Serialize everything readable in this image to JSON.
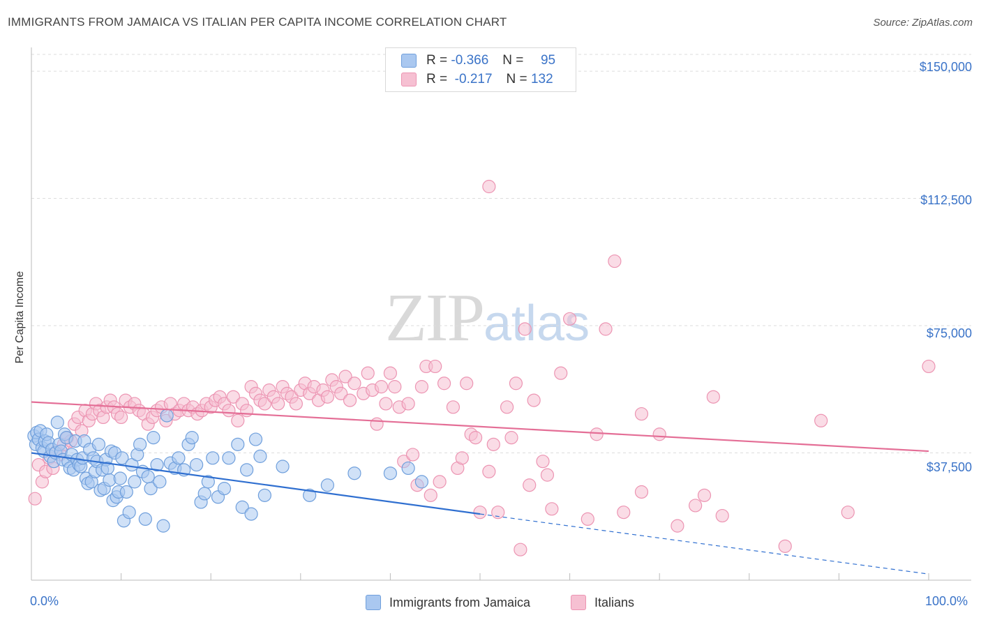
{
  "header": {
    "title": "IMMIGRANTS FROM JAMAICA VS ITALIAN PER CAPITA INCOME CORRELATION CHART",
    "source": "Source: ZipAtlas.com"
  },
  "watermark": {
    "zip": "ZIP",
    "atlas": "atlas"
  },
  "legend": {
    "jamaica": {
      "r_label": "R =",
      "r_value": "-0.366",
      "n_label": "N =",
      "n_value": "95"
    },
    "italians": {
      "r_label": "R =",
      "r_value": "-0.217",
      "n_label": "N =",
      "n_value": "132"
    }
  },
  "colors": {
    "jamaica_fill": "#aac8f0",
    "jamaica_stroke": "#6f9fdc",
    "jamaica_line": "#2f6fd0",
    "italians_fill": "#f6c0d2",
    "italians_stroke": "#ec94b2",
    "italians_line": "#e46e96",
    "axis_text": "#3a73c8",
    "grid": "#dddddd"
  },
  "chart_data": {
    "type": "scatter",
    "title": "IMMIGRANTS FROM JAMAICA VS ITALIAN PER CAPITA INCOME CORRELATION CHART",
    "xlabel": "",
    "ylabel": "Per Capita Income",
    "xlim": [
      0,
      100
    ],
    "ylim": [
      0,
      157000
    ],
    "x_tick_labels": [
      "0.0%",
      "100.0%"
    ],
    "y_ticks": [
      37500,
      75000,
      112500,
      150000
    ],
    "y_tick_labels": [
      "$37,500",
      "$75,000",
      "$112,500",
      "$150,000"
    ],
    "legend_entries": [
      "Immigrants from Jamaica",
      "Italians"
    ],
    "series": [
      {
        "name": "Immigrants from Jamaica",
        "trend": {
          "x0": 0,
          "y0": 37500,
          "x1": 50,
          "y1": 19500,
          "dashed_to_x": 100,
          "dashed_to_y": 1800
        },
        "points": [
          [
            0.3,
            42500
          ],
          [
            0.5,
            40000
          ],
          [
            0.6,
            43500
          ],
          [
            0.8,
            41500
          ],
          [
            1,
            44000
          ],
          [
            1.2,
            39000
          ],
          [
            1.4,
            38000
          ],
          [
            1.5,
            41000
          ],
          [
            1.7,
            43000
          ],
          [
            1.9,
            40500
          ],
          [
            2.1,
            36500
          ],
          [
            2.3,
            38500
          ],
          [
            2.5,
            35000
          ],
          [
            2.7,
            37500
          ],
          [
            2.9,
            46500
          ],
          [
            3.1,
            40000
          ],
          [
            3.3,
            38000
          ],
          [
            3.5,
            35500
          ],
          [
            3.7,
            43000
          ],
          [
            3.9,
            42000
          ],
          [
            4.1,
            35000
          ],
          [
            4.3,
            33000
          ],
          [
            4.5,
            37000
          ],
          [
            4.7,
            32500
          ],
          [
            4.9,
            41000
          ],
          [
            5.1,
            35500
          ],
          [
            5.3,
            34000
          ],
          [
            5.5,
            33500
          ],
          [
            5.7,
            36000
          ],
          [
            5.9,
            41000
          ],
          [
            6.1,
            30000
          ],
          [
            6.3,
            28500
          ],
          [
            6.5,
            38500
          ],
          [
            6.7,
            29000
          ],
          [
            6.9,
            36000
          ],
          [
            7.1,
            32000
          ],
          [
            7.3,
            35000
          ],
          [
            7.5,
            40000
          ],
          [
            7.7,
            26500
          ],
          [
            7.9,
            32500
          ],
          [
            8.1,
            27000
          ],
          [
            8.3,
            35500
          ],
          [
            8.5,
            33000
          ],
          [
            8.7,
            29500
          ],
          [
            8.9,
            38000
          ],
          [
            9.1,
            23500
          ],
          [
            9.3,
            37500
          ],
          [
            9.5,
            24500
          ],
          [
            9.7,
            26000
          ],
          [
            9.9,
            30000
          ],
          [
            10.1,
            36000
          ],
          [
            10.3,
            17500
          ],
          [
            10.6,
            26000
          ],
          [
            10.9,
            20000
          ],
          [
            11.2,
            34000
          ],
          [
            11.5,
            29000
          ],
          [
            11.8,
            37000
          ],
          [
            12.1,
            40000
          ],
          [
            12.4,
            32000
          ],
          [
            12.7,
            18000
          ],
          [
            13,
            30500
          ],
          [
            13.3,
            27000
          ],
          [
            13.6,
            42000
          ],
          [
            14,
            34000
          ],
          [
            14.3,
            29000
          ],
          [
            14.7,
            16000
          ],
          [
            15.1,
            48500
          ],
          [
            15.5,
            34500
          ],
          [
            16,
            33000
          ],
          [
            16.4,
            36000
          ],
          [
            17,
            32500
          ],
          [
            17.5,
            40000
          ],
          [
            17.9,
            42000
          ],
          [
            18.4,
            34000
          ],
          [
            18.9,
            23000
          ],
          [
            19.3,
            25500
          ],
          [
            19.7,
            29000
          ],
          [
            20.2,
            36000
          ],
          [
            20.8,
            24500
          ],
          [
            21.5,
            27000
          ],
          [
            22,
            36000
          ],
          [
            23,
            40000
          ],
          [
            23.5,
            21500
          ],
          [
            24,
            32500
          ],
          [
            24.5,
            19500
          ],
          [
            25,
            41500
          ],
          [
            25.5,
            36500
          ],
          [
            26,
            25000
          ],
          [
            28,
            33500
          ],
          [
            31,
            25000
          ],
          [
            33,
            28000
          ],
          [
            36,
            31500
          ],
          [
            40,
            31500
          ],
          [
            42,
            33000
          ],
          [
            43.5,
            29000
          ]
        ]
      },
      {
        "name": "Italians",
        "trend": {
          "x0": 0,
          "y0": 52500,
          "x1": 100,
          "y1": 38000
        },
        "points": [
          [
            0.4,
            24000
          ],
          [
            0.8,
            34000
          ],
          [
            1.2,
            29000
          ],
          [
            1.6,
            32000
          ],
          [
            2,
            36000
          ],
          [
            2.4,
            33000
          ],
          [
            2.8,
            38000
          ],
          [
            3.2,
            37000
          ],
          [
            3.6,
            40000
          ],
          [
            4,
            42000
          ],
          [
            4.4,
            41000
          ],
          [
            4.8,
            46000
          ],
          [
            5.2,
            48000
          ],
          [
            5.6,
            44000
          ],
          [
            6,
            50000
          ],
          [
            6.4,
            47000
          ],
          [
            6.8,
            49000
          ],
          [
            7.2,
            52000
          ],
          [
            7.6,
            50000
          ],
          [
            8,
            48000
          ],
          [
            8.4,
            51000
          ],
          [
            8.8,
            53000
          ],
          [
            9.2,
            51000
          ],
          [
            9.6,
            49000
          ],
          [
            10,
            48000
          ],
          [
            10.5,
            53000
          ],
          [
            11,
            51000
          ],
          [
            11.5,
            52000
          ],
          [
            12,
            50000
          ],
          [
            12.5,
            49000
          ],
          [
            13,
            46000
          ],
          [
            13.5,
            48000
          ],
          [
            14,
            50000
          ],
          [
            14.5,
            51000
          ],
          [
            15,
            47000
          ],
          [
            15.5,
            52000
          ],
          [
            16,
            49000
          ],
          [
            16.5,
            50000
          ],
          [
            17,
            52000
          ],
          [
            17.5,
            50000
          ],
          [
            18,
            51000
          ],
          [
            18.5,
            49000
          ],
          [
            19,
            50000
          ],
          [
            19.5,
            52000
          ],
          [
            20,
            51000
          ],
          [
            20.5,
            53000
          ],
          [
            21,
            54000
          ],
          [
            21.5,
            52000
          ],
          [
            22,
            50000
          ],
          [
            22.5,
            54000
          ],
          [
            23,
            47000
          ],
          [
            23.5,
            52000
          ],
          [
            24,
            50000
          ],
          [
            24.5,
            57000
          ],
          [
            25,
            55000
          ],
          [
            25.5,
            53000
          ],
          [
            26,
            52000
          ],
          [
            26.5,
            56000
          ],
          [
            27,
            54000
          ],
          [
            27.5,
            52000
          ],
          [
            28,
            57000
          ],
          [
            28.5,
            55000
          ],
          [
            29,
            54000
          ],
          [
            29.5,
            52000
          ],
          [
            30,
            56000
          ],
          [
            30.5,
            58000
          ],
          [
            31,
            55000
          ],
          [
            31.5,
            57000
          ],
          [
            32,
            53000
          ],
          [
            32.5,
            56000
          ],
          [
            33,
            54000
          ],
          [
            33.5,
            59000
          ],
          [
            34,
            57000
          ],
          [
            34.5,
            55000
          ],
          [
            35,
            60000
          ],
          [
            35.5,
            53000
          ],
          [
            36,
            58000
          ],
          [
            37,
            55000
          ],
          [
            37.5,
            61000
          ],
          [
            38,
            56000
          ],
          [
            38.5,
            46000
          ],
          [
            39,
            57000
          ],
          [
            39.5,
            52000
          ],
          [
            40,
            61000
          ],
          [
            40.5,
            57000
          ],
          [
            41,
            51000
          ],
          [
            41.5,
            35000
          ],
          [
            42,
            52000
          ],
          [
            42.5,
            37000
          ],
          [
            43,
            28000
          ],
          [
            43.5,
            57000
          ],
          [
            44,
            63000
          ],
          [
            44.5,
            25000
          ],
          [
            45,
            63000
          ],
          [
            45.5,
            29000
          ],
          [
            46,
            58000
          ],
          [
            47,
            51000
          ],
          [
            47.5,
            33000
          ],
          [
            48,
            36000
          ],
          [
            48.5,
            58000
          ],
          [
            49,
            43000
          ],
          [
            49.5,
            42000
          ],
          [
            50,
            20000
          ],
          [
            51,
            32000
          ],
          [
            51.5,
            40000
          ],
          [
            52,
            20000
          ],
          [
            53,
            51000
          ],
          [
            53.5,
            42000
          ],
          [
            54,
            58000
          ],
          [
            54.5,
            9000
          ],
          [
            55,
            74000
          ],
          [
            55.5,
            28000
          ],
          [
            56,
            53000
          ],
          [
            57,
            35000
          ],
          [
            57.5,
            31000
          ],
          [
            58,
            21000
          ],
          [
            59,
            61000
          ],
          [
            60,
            77000
          ],
          [
            62,
            18000
          ],
          [
            63,
            43000
          ],
          [
            64,
            74000
          ],
          [
            65,
            94000
          ],
          [
            66,
            20000
          ],
          [
            68,
            26000
          ],
          [
            70,
            43000
          ],
          [
            72,
            16000
          ],
          [
            74,
            22000
          ],
          [
            75,
            25000
          ],
          [
            77,
            19000
          ],
          [
            84,
            10000
          ],
          [
            88,
            47000
          ],
          [
            91,
            20000
          ]
        ]
      }
    ],
    "extra_points": {
      "italians_high": [
        [
          51,
          116000
        ],
        [
          100,
          63000
        ],
        [
          68,
          49000
        ],
        [
          76,
          54000
        ]
      ]
    }
  },
  "axes": {
    "x_left_label": "0.0%",
    "x_right_label": "100.0%",
    "y_axis_title": "Per Capita Income"
  }
}
